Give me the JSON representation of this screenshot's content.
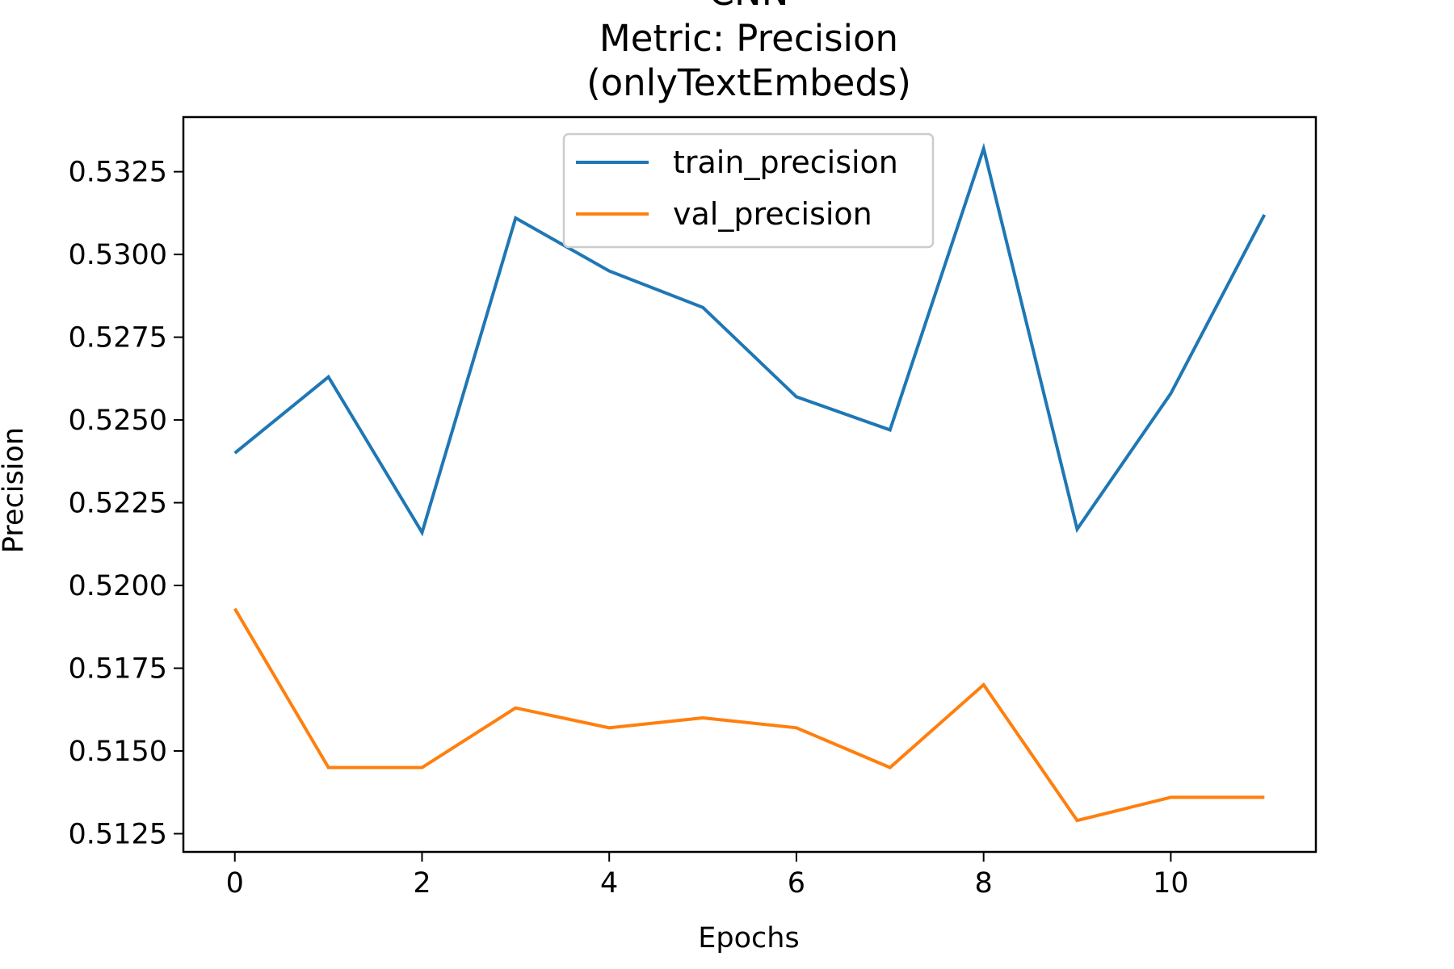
{
  "chart_data": {
    "type": "line",
    "title_lines": [
      "CNN",
      "Metric: Precision",
      "(onlyTextEmbeds)"
    ],
    "xlabel": "Epochs",
    "ylabel": "Precision",
    "x": [
      0,
      1,
      2,
      3,
      4,
      5,
      6,
      7,
      8,
      9,
      10,
      11
    ],
    "xlim": [
      -0.55,
      11.55
    ],
    "ylim": [
      0.51195,
      0.53415
    ],
    "x_ticks": [
      0,
      2,
      4,
      6,
      8,
      10
    ],
    "x_tick_labels": [
      "0",
      "2",
      "4",
      "6",
      "8",
      "10"
    ],
    "y_ticks": [
      0.5125,
      0.515,
      0.5175,
      0.52,
      0.5225,
      0.525,
      0.5275,
      0.53,
      0.5325
    ],
    "y_tick_labels": [
      "0.5125",
      "0.5150",
      "0.5175",
      "0.5200",
      "0.5225",
      "0.5250",
      "0.5275",
      "0.5300",
      "0.5325"
    ],
    "grid": false,
    "legend_position": "top-center",
    "series": [
      {
        "name": "train_precision",
        "color": "#1f77b4",
        "values": [
          0.524,
          0.5263,
          0.5216,
          0.5311,
          0.5295,
          0.5284,
          0.5257,
          0.5247,
          0.5332,
          0.5217,
          0.5258,
          0.5312
        ]
      },
      {
        "name": "val_precision",
        "color": "#ff7f0e",
        "values": [
          0.5193,
          0.5145,
          0.5145,
          0.5163,
          0.5157,
          0.516,
          0.5157,
          0.5145,
          0.517,
          0.5129,
          0.5136,
          0.5136
        ]
      }
    ]
  }
}
